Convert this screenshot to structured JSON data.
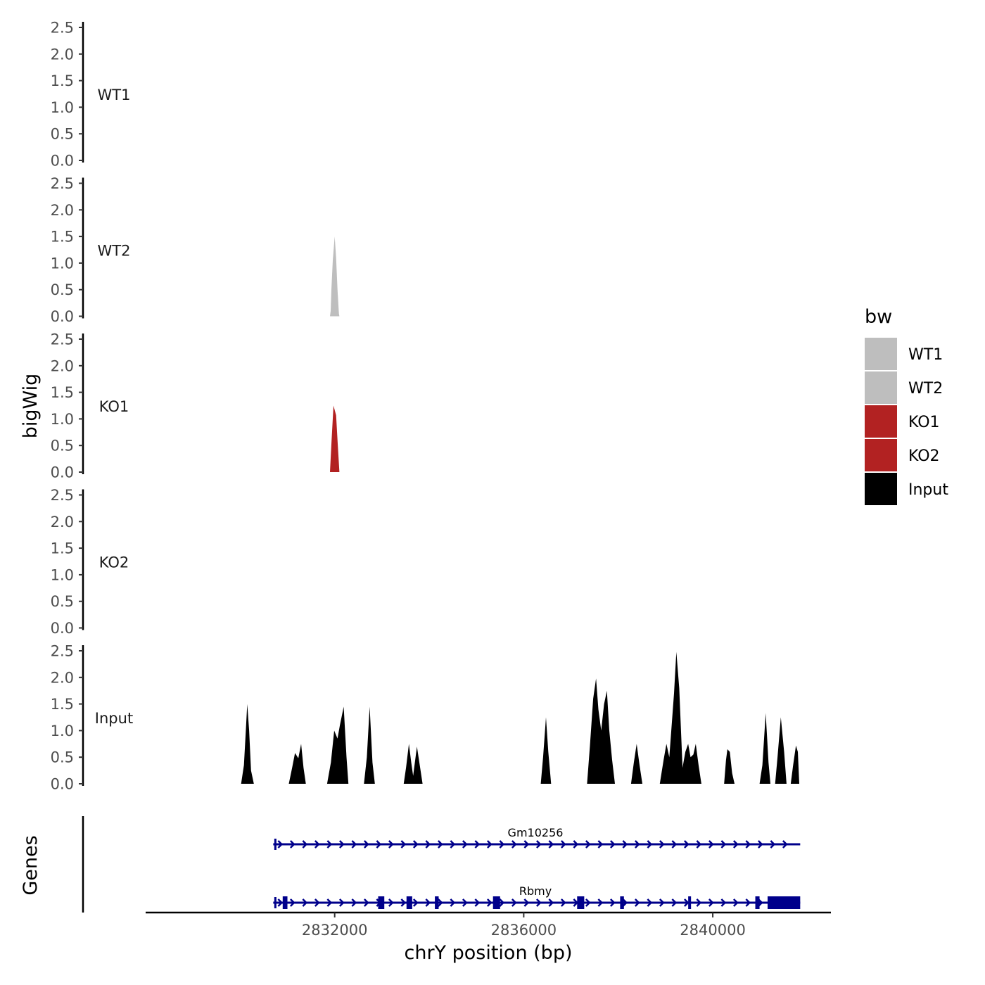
{
  "chart_data": {
    "type": "area",
    "title": "",
    "ylabel": "bigWig",
    "xlabel": "chrY position (bp)",
    "xlim": [
      2828000,
      2842500
    ],
    "ylim": [
      0,
      2.6
    ],
    "y_ticks": [
      "0.0",
      "0.5",
      "1.0",
      "1.5",
      "2.0",
      "2.5"
    ],
    "x_ticks": [
      {
        "value": 2832000,
        "label": "2832000"
      },
      {
        "value": 2836000,
        "label": "2836000"
      },
      {
        "value": 2840000,
        "label": "2840000"
      }
    ],
    "colors": {
      "WT": "#bebebe",
      "KO": "#b22222",
      "Input": "#000000",
      "gene": "#00008b"
    },
    "legend": {
      "title": "bw",
      "position": "right",
      "entries": [
        {
          "label": "WT1",
          "color": "#bebebe"
        },
        {
          "label": "WT2",
          "color": "#bebebe"
        },
        {
          "label": "KO1",
          "color": "#b22222"
        },
        {
          "label": "KO2",
          "color": "#b22222"
        },
        {
          "label": "Input",
          "color": "#000000"
        }
      ]
    },
    "tracks": [
      {
        "name": "WT1",
        "color": "#bebebe",
        "peaks": []
      },
      {
        "name": "WT2",
        "color": "#bebebe",
        "peaks": [
          [
            [
              2831900,
              0
            ],
            [
              2831915,
              0.1
            ],
            [
              2831930,
              0.5
            ],
            [
              2831960,
              1.05
            ],
            [
              2832000,
              1.5
            ],
            [
              2832030,
              1.1
            ],
            [
              2832060,
              0.5
            ],
            [
              2832090,
              0.05
            ],
            [
              2832100,
              0
            ]
          ]
        ]
      },
      {
        "name": "KO1",
        "color": "#b22222",
        "peaks": [
          [
            [
              2831900,
              0
            ],
            [
              2831935,
              0.6
            ],
            [
              2831975,
              1.25
            ],
            [
              2832030,
              1.07
            ],
            [
              2832060,
              0.6
            ],
            [
              2832100,
              0
            ]
          ]
        ]
      },
      {
        "name": "KO2",
        "color": "#b22222",
        "peaks": []
      },
      {
        "name": "Input",
        "color": "#000000",
        "peaks": [
          [
            [
              2830020,
              0
            ],
            [
              2830080,
              0.35
            ],
            [
              2830120,
              1.0
            ],
            [
              2830150,
              1.5
            ],
            [
              2830190,
              1.0
            ],
            [
              2830230,
              0.25
            ],
            [
              2830290,
              0
            ]
          ],
          [
            [
              2831030,
              0
            ],
            [
              2831100,
              0.3
            ],
            [
              2831160,
              0.58
            ],
            [
              2831230,
              0.48
            ],
            [
              2831290,
              0.75
            ],
            [
              2831340,
              0.3
            ],
            [
              2831390,
              0
            ]
          ],
          [
            [
              2831840,
              0
            ],
            [
              2831920,
              0.4
            ],
            [
              2831990,
              1.0
            ],
            [
              2832060,
              0.85
            ],
            [
              2832110,
              1.1
            ],
            [
              2832190,
              1.45
            ],
            [
              2832250,
              0.5
            ],
            [
              2832290,
              0
            ]
          ],
          [
            [
              2832620,
              0
            ],
            [
              2832680,
              0.5
            ],
            [
              2832740,
              1.45
            ],
            [
              2832800,
              0.4
            ],
            [
              2832850,
              0
            ]
          ],
          [
            [
              2833460,
              0
            ],
            [
              2833510,
              0.3
            ],
            [
              2833570,
              0.75
            ],
            [
              2833620,
              0.4
            ],
            [
              2833660,
              0.15
            ],
            [
              2833740,
              0.7
            ],
            [
              2833800,
              0.35
            ],
            [
              2833860,
              0
            ]
          ],
          [
            [
              2836360,
              0
            ],
            [
              2836410,
              0.5
            ],
            [
              2836470,
              1.25
            ],
            [
              2836520,
              0.6
            ],
            [
              2836580,
              0
            ]
          ],
          [
            [
              2837340,
              0
            ],
            [
              2837400,
              0.7
            ],
            [
              2837470,
              1.6
            ],
            [
              2837530,
              1.98
            ],
            [
              2837580,
              1.4
            ],
            [
              2837640,
              1.0
            ],
            [
              2837700,
              1.5
            ],
            [
              2837760,
              1.75
            ],
            [
              2837810,
              1.0
            ],
            [
              2837870,
              0.45
            ],
            [
              2837930,
              0
            ]
          ],
          [
            [
              2838270,
              0
            ],
            [
              2838330,
              0.4
            ],
            [
              2838390,
              0.75
            ],
            [
              2838450,
              0.35
            ],
            [
              2838510,
              0
            ]
          ],
          [
            [
              2838880,
              0
            ],
            [
              2838960,
              0.45
            ],
            [
              2839020,
              0.75
            ],
            [
              2839080,
              0.5
            ],
            [
              2839180,
              1.7
            ],
            [
              2839230,
              2.48
            ],
            [
              2839290,
              1.8
            ],
            [
              2839360,
              0.3
            ],
            [
              2839420,
              0.6
            ],
            [
              2839480,
              0.75
            ],
            [
              2839530,
              0.5
            ],
            [
              2839590,
              0.55
            ],
            [
              2839640,
              0.75
            ],
            [
              2839700,
              0.35
            ],
            [
              2839760,
              0
            ]
          ],
          [
            [
              2840240,
              0
            ],
            [
              2840280,
              0.45
            ],
            [
              2840310,
              0.65
            ],
            [
              2840360,
              0.6
            ],
            [
              2840410,
              0.2
            ],
            [
              2840460,
              0
            ]
          ],
          [
            [
              2840990,
              0
            ],
            [
              2841050,
              0.35
            ],
            [
              2841120,
              1.33
            ],
            [
              2841180,
              0.4
            ],
            [
              2841220,
              0
            ]
          ],
          [
            [
              2841320,
              0
            ],
            [
              2841370,
              0.5
            ],
            [
              2841440,
              1.25
            ],
            [
              2841510,
              0.6
            ],
            [
              2841560,
              0
            ]
          ],
          [
            [
              2841650,
              0
            ],
            [
              2841700,
              0.35
            ],
            [
              2841760,
              0.72
            ],
            [
              2841800,
              0.6
            ],
            [
              2841830,
              0
            ]
          ]
        ]
      }
    ],
    "genes_track": {
      "label": "Genes",
      "genes": [
        {
          "name": "Gm10256",
          "start": 2830700,
          "end": 2841850,
          "strand": "+",
          "exons": []
        },
        {
          "name": "Rbmy",
          "start": 2830700,
          "end": 2841850,
          "strand": "+",
          "exons": [
            [
              2830900,
              2831000
            ],
            [
              2832920,
              2833050
            ],
            [
              2833520,
              2833640
            ],
            [
              2834120,
              2834200
            ],
            [
              2835350,
              2835500
            ],
            [
              2837130,
              2837280
            ],
            [
              2838040,
              2838120
            ],
            [
              2839480,
              2839540
            ],
            [
              2840900,
              2840990
            ],
            [
              2841160,
              2841850
            ]
          ]
        }
      ]
    }
  }
}
